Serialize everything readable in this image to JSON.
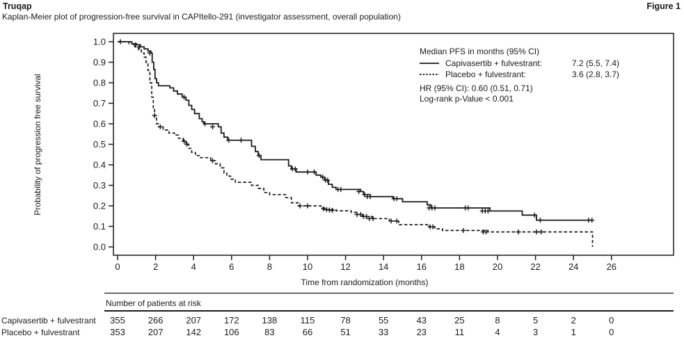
{
  "header": {
    "brand": "Truqap",
    "figure_label": "Figure 1",
    "subtitle": "Kaplan-Meier plot of progression-free survival in CAPItello-291 (investigator assessment, overall population)"
  },
  "colors": {
    "ink": "#1a1a1a",
    "background": "#ffffff"
  },
  "chart_data": {
    "type": "line",
    "subtype": "kaplan-meier-step",
    "xlabel": "Time from randomization (months)",
    "ylabel": "Probability of progression free survival",
    "xlim": [
      0,
      29.3
    ],
    "ylim": [
      0,
      1
    ],
    "x_ticks": [
      0,
      2,
      4,
      6,
      8,
      10,
      12,
      14,
      16,
      18,
      20,
      22,
      24,
      26
    ],
    "y_ticks": [
      1.0,
      0.9,
      0.8,
      0.7,
      0.6,
      0.5,
      0.4,
      0.3,
      0.2,
      0.1,
      0.0
    ],
    "grid": false,
    "legend": {
      "position": "top-right",
      "header": "Median PFS in months (95% CI)",
      "entries": [
        {
          "name": "Capivasertib + fulvestrant:",
          "value": "7.2 (5.5, 7.4)",
          "line": "solid"
        },
        {
          "name": "Placebo + fulvestrant:",
          "value": "3.6 (2.8, 3.7)",
          "line": "dashed"
        }
      ],
      "hr_text": "HR (95% CI): 0.60 (0.51, 0.71)",
      "logrank_text": "Log-rank p-Value < 0.001"
    },
    "series": [
      {
        "name": "Capivasertib + fulvestrant",
        "style": "solid",
        "steps": [
          [
            0,
            1.0
          ],
          [
            0.75,
            0.99
          ],
          [
            1.0,
            0.985
          ],
          [
            1.2,
            0.975
          ],
          [
            1.4,
            0.965
          ],
          [
            1.6,
            0.955
          ],
          [
            1.75,
            0.945
          ],
          [
            1.82,
            0.9
          ],
          [
            1.9,
            0.865
          ],
          [
            1.97,
            0.82
          ],
          [
            2.05,
            0.8
          ],
          [
            2.15,
            0.785
          ],
          [
            2.75,
            0.775
          ],
          [
            2.95,
            0.76
          ],
          [
            3.15,
            0.745
          ],
          [
            3.4,
            0.73
          ],
          [
            3.6,
            0.715
          ],
          [
            3.75,
            0.69
          ],
          [
            3.9,
            0.67
          ],
          [
            4.05,
            0.65
          ],
          [
            4.3,
            0.625
          ],
          [
            4.45,
            0.61
          ],
          [
            4.55,
            0.6
          ],
          [
            5.3,
            0.585
          ],
          [
            5.45,
            0.555
          ],
          [
            5.6,
            0.535
          ],
          [
            5.8,
            0.52
          ],
          [
            7.05,
            0.49
          ],
          [
            7.25,
            0.465
          ],
          [
            7.4,
            0.445
          ],
          [
            7.55,
            0.425
          ],
          [
            9.0,
            0.395
          ],
          [
            9.15,
            0.38
          ],
          [
            9.4,
            0.365
          ],
          [
            10.45,
            0.35
          ],
          [
            10.7,
            0.34
          ],
          [
            10.9,
            0.325
          ],
          [
            11.1,
            0.305
          ],
          [
            11.3,
            0.29
          ],
          [
            11.5,
            0.28
          ],
          [
            12.8,
            0.27
          ],
          [
            12.95,
            0.255
          ],
          [
            13.3,
            0.245
          ],
          [
            14.5,
            0.235
          ],
          [
            15.0,
            0.22
          ],
          [
            16.3,
            0.205
          ],
          [
            16.5,
            0.19
          ],
          [
            19.6,
            0.175
          ],
          [
            21.3,
            0.155
          ],
          [
            22.05,
            0.13
          ],
          [
            25.0,
            0.13
          ]
        ],
        "censors": [
          [
            0.15,
            1.0
          ],
          [
            0.95,
            0.985
          ],
          [
            1.15,
            0.975
          ],
          [
            1.7,
            0.945
          ],
          [
            3.5,
            0.73
          ],
          [
            4.6,
            0.6
          ],
          [
            5.0,
            0.585
          ],
          [
            5.85,
            0.52
          ],
          [
            6.5,
            0.52
          ],
          [
            7.45,
            0.445
          ],
          [
            9.2,
            0.38
          ],
          [
            9.35,
            0.38
          ],
          [
            10.0,
            0.365
          ],
          [
            10.35,
            0.365
          ],
          [
            10.8,
            0.34
          ],
          [
            10.95,
            0.325
          ],
          [
            11.05,
            0.325
          ],
          [
            11.6,
            0.28
          ],
          [
            11.75,
            0.28
          ],
          [
            12.7,
            0.27
          ],
          [
            13.0,
            0.255
          ],
          [
            13.15,
            0.245
          ],
          [
            13.3,
            0.245
          ],
          [
            14.55,
            0.235
          ],
          [
            14.7,
            0.235
          ],
          [
            16.4,
            0.19
          ],
          [
            16.55,
            0.19
          ],
          [
            16.7,
            0.19
          ],
          [
            18.3,
            0.19
          ],
          [
            18.45,
            0.19
          ],
          [
            19.2,
            0.175
          ],
          [
            19.35,
            0.175
          ],
          [
            19.5,
            0.175
          ],
          [
            21.95,
            0.155
          ],
          [
            22.25,
            0.13
          ],
          [
            24.8,
            0.13
          ],
          [
            24.97,
            0.13
          ]
        ]
      },
      {
        "name": "Placebo + fulvestrant",
        "style": "dashed",
        "steps": [
          [
            0,
            1.0
          ],
          [
            0.6,
            0.99
          ],
          [
            0.9,
            0.975
          ],
          [
            1.1,
            0.96
          ],
          [
            1.25,
            0.945
          ],
          [
            1.4,
            0.925
          ],
          [
            1.5,
            0.9
          ],
          [
            1.6,
            0.86
          ],
          [
            1.7,
            0.8
          ],
          [
            1.8,
            0.73
          ],
          [
            1.88,
            0.67
          ],
          [
            1.95,
            0.64
          ],
          [
            2.05,
            0.6
          ],
          [
            2.15,
            0.585
          ],
          [
            2.4,
            0.57
          ],
          [
            2.7,
            0.555
          ],
          [
            3.0,
            0.545
          ],
          [
            3.2,
            0.53
          ],
          [
            3.45,
            0.515
          ],
          [
            3.6,
            0.5
          ],
          [
            3.75,
            0.48
          ],
          [
            3.9,
            0.46
          ],
          [
            4.1,
            0.445
          ],
          [
            4.35,
            0.435
          ],
          [
            4.9,
            0.42
          ],
          [
            5.15,
            0.405
          ],
          [
            5.4,
            0.385
          ],
          [
            5.6,
            0.36
          ],
          [
            5.75,
            0.345
          ],
          [
            5.95,
            0.33
          ],
          [
            6.2,
            0.315
          ],
          [
            7.05,
            0.3
          ],
          [
            7.4,
            0.285
          ],
          [
            7.7,
            0.265
          ],
          [
            8.0,
            0.255
          ],
          [
            8.85,
            0.24
          ],
          [
            9.15,
            0.215
          ],
          [
            9.5,
            0.2
          ],
          [
            10.7,
            0.19
          ],
          [
            11.0,
            0.182
          ],
          [
            11.5,
            0.176
          ],
          [
            12.3,
            0.168
          ],
          [
            12.6,
            0.158
          ],
          [
            12.9,
            0.148
          ],
          [
            13.4,
            0.138
          ],
          [
            14.3,
            0.126
          ],
          [
            14.8,
            0.108
          ],
          [
            16.4,
            0.098
          ],
          [
            16.7,
            0.088
          ],
          [
            17.1,
            0.08
          ],
          [
            19.5,
            0.073
          ],
          [
            25.0,
            0.0
          ]
        ],
        "censors": [
          [
            1.95,
            0.64
          ],
          [
            2.25,
            0.585
          ],
          [
            3.5,
            0.515
          ],
          [
            3.65,
            0.5
          ],
          [
            5.0,
            0.42
          ],
          [
            9.6,
            0.2
          ],
          [
            10.0,
            0.2
          ],
          [
            10.85,
            0.185
          ],
          [
            11.0,
            0.182
          ],
          [
            11.15,
            0.18
          ],
          [
            11.3,
            0.178
          ],
          [
            12.6,
            0.158
          ],
          [
            12.8,
            0.158
          ],
          [
            12.95,
            0.148
          ],
          [
            13.1,
            0.148
          ],
          [
            13.25,
            0.138
          ],
          [
            13.45,
            0.138
          ],
          [
            14.4,
            0.126
          ],
          [
            14.7,
            0.126
          ],
          [
            16.45,
            0.098
          ],
          [
            16.6,
            0.098
          ],
          [
            18.2,
            0.08
          ],
          [
            19.25,
            0.073
          ],
          [
            19.4,
            0.073
          ],
          [
            21.1,
            0.073
          ],
          [
            22.05,
            0.073
          ],
          [
            22.3,
            0.073
          ]
        ]
      }
    ]
  },
  "risk_table": {
    "title": "Number of patients at risk",
    "times": [
      0,
      2,
      4,
      6,
      8,
      10,
      12,
      14,
      16,
      18,
      20,
      22,
      24,
      26
    ],
    "rows": [
      {
        "label": "Capivasertib + fulvestrant",
        "values": [
          "355",
          "266",
          "207",
          "172",
          "138",
          "115",
          "78",
          "55",
          "43",
          "25",
          "8",
          "5",
          "2",
          "0"
        ]
      },
      {
        "label": "Placebo + fulvestrant",
        "values": [
          "353",
          "207",
          "142",
          "106",
          "83",
          "66",
          "51",
          "33",
          "23",
          "11",
          "4",
          "3",
          "1",
          "0"
        ]
      }
    ]
  }
}
